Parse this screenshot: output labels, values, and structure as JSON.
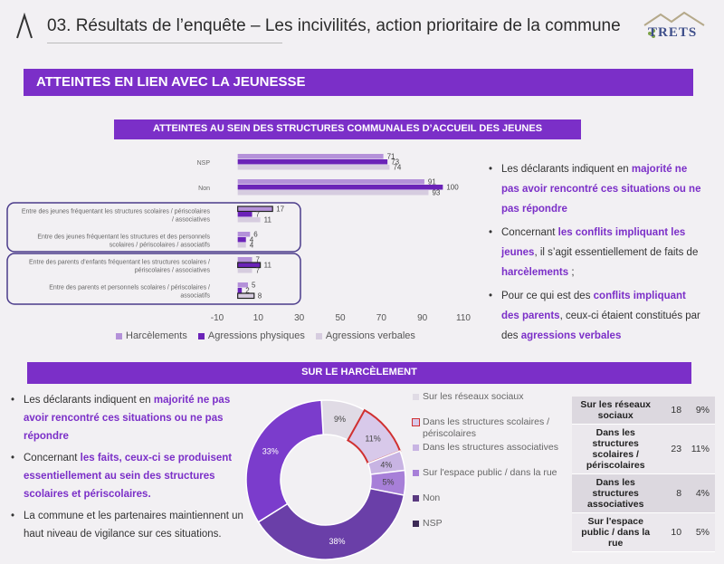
{
  "header": {
    "title": "03. Résultats de l’enquête – Les incivilités, action prioritaire de la commune",
    "brand": "TRETS"
  },
  "section": {
    "title": "ATTEINTES EN LIEN AVEC LA JEUNESSE"
  },
  "structures": {
    "title": "ATTEINTES AU SEIN DES STRUCTURES COMMUNALES D’ACCUEIL DES JEUNES"
  },
  "harcelement": {
    "title": "SUR LE HARCÈLEMENT"
  },
  "colors": {
    "accent": "#7b2fc8",
    "harcelement": "#b491d9",
    "agressions_physiques": "#6b23b8",
    "agressions_verbales": "#d6ccdf"
  },
  "chart_data": [
    {
      "type": "bar",
      "orientation": "horizontal",
      "categories": [
        "NSP",
        "Non",
        "Entre des jeunes fréquentant les structures scolaires / périscolaires / associatives",
        "Entre des jeunes fréquentant les structures et des personnels scolaires / périscolaires / associatifs",
        "Entre des parents d’enfants fréquentant les structures scolaires / périscolaires / associatives",
        "Entre des parents et personnels scolaires / périscolaires / associatifs"
      ],
      "series": [
        {
          "name": "Harcèlements",
          "values": [
            71,
            91,
            17,
            6,
            7,
            5
          ]
        },
        {
          "name": "Agressions physiques",
          "values": [
            73,
            100,
            7,
            4,
            11,
            2
          ]
        },
        {
          "name": "Agressions verbales",
          "values": [
            74,
            93,
            11,
            4,
            7,
            8
          ]
        }
      ],
      "xlim": [
        -10,
        110
      ],
      "xticks": [
        "-10",
        "10",
        "30",
        "50",
        "70",
        "90",
        "110"
      ],
      "grid": false,
      "legend": "bottom"
    },
    {
      "type": "pie",
      "donut": true,
      "slices": [
        {
          "label": "Sur les réseaux sociaux",
          "value": 9,
          "text": "9%"
        },
        {
          "label": "Dans les structures scolaires / périscolaires",
          "value": 11,
          "text": "11%"
        },
        {
          "label": "Dans les structures associatives",
          "value": 4,
          "text": "4%"
        },
        {
          "label": "Sur l'espace public / dans la rue",
          "value": 5,
          "text": "5%"
        },
        {
          "label": "Non",
          "value": 38,
          "text": "38%"
        },
        {
          "label": "NSP",
          "value": 33,
          "text": "33%"
        }
      ],
      "legend": "right"
    }
  ],
  "legend_labels": {
    "harcelement": "Harcèlements",
    "physiques": "Agressions physiques",
    "verbales": "Agressions verbales"
  },
  "bullets_top": [
    {
      "pre": "Les déclarants indiquent en ",
      "hl": "majorité ne pas avoir rencontré ces situations ou ne pas répondre",
      "post": ""
    },
    {
      "pre": "Concernant ",
      "hl": "les conflits impliquant les jeunes",
      "post": ", il s’agit essentiellement de faits de ",
      "hl2": "harcèlements",
      "post2": " ;"
    },
    {
      "pre": "Pour ce qui est des ",
      "hl": "conflits impliquant des parents",
      "post": ", ceux-ci étaient constitués par des ",
      "hl2": "agressions verbales",
      "post2": ""
    }
  ],
  "bullets_bottom": [
    {
      "pre": "Les déclarants indiquent en ",
      "hl": "majorité ne pas avoir rencontré ces situations ou ne pas répondre",
      "post": ""
    },
    {
      "pre": "Concernant ",
      "hl": "les faits, ceux-ci se produisent essentiellement au sein des structures scolaires et périscolaires.",
      "post": ""
    },
    {
      "pre": "La commune et les partenaires maintiennent un haut niveau de vigilance sur ces situations.",
      "hl": "",
      "post": ""
    }
  ],
  "donut_legend": [
    "Sur les réseaux sociaux",
    "Dans les structures scolaires / périscolaires",
    "Dans les structures associatives",
    "Sur l'espace public / dans la rue",
    "Non",
    "NSP"
  ],
  "table": [
    {
      "label": "Sur les réseaux sociaux",
      "count": "18",
      "pct": "9%"
    },
    {
      "label": "Dans les structures scolaires / périscolaires",
      "count": "23",
      "pct": "11%"
    },
    {
      "label": "Dans les structures associatives",
      "count": "8",
      "pct": "4%"
    },
    {
      "label": "Sur l'espace public / dans la rue",
      "count": "10",
      "pct": "5%"
    }
  ]
}
